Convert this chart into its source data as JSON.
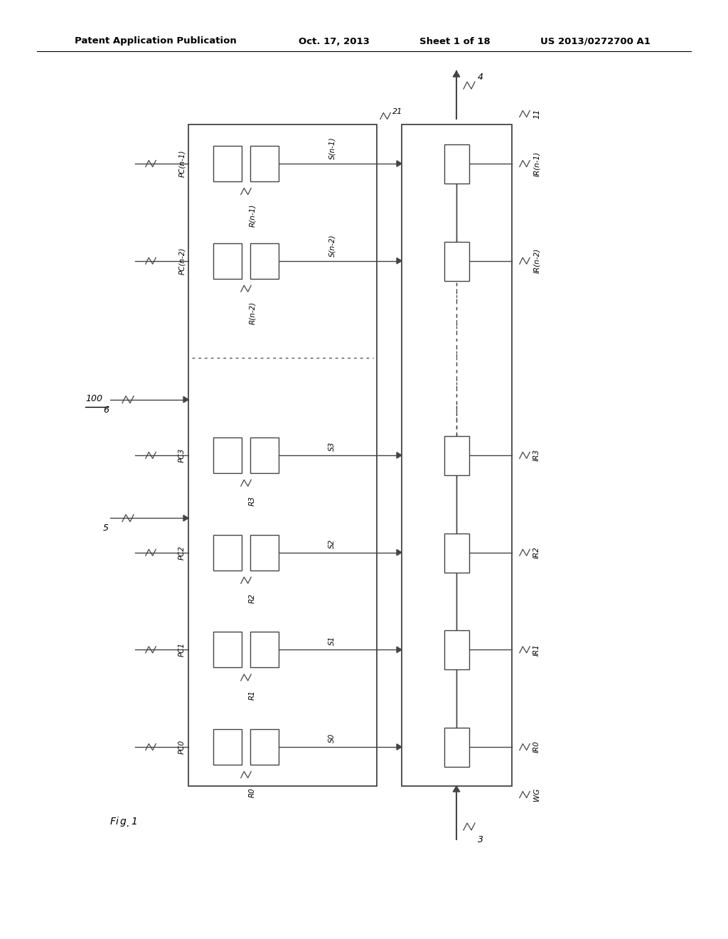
{
  "bg_color": "#ffffff",
  "line_color": "#444444",
  "header_text": "Patent Application Publication",
  "header_date": "Oct. 17, 2013",
  "header_sheet": "Sheet 1 of 18",
  "header_patent": "US 2013/0272700 A1",
  "fig_label": "Fig. 1",
  "n_channels": 7,
  "channel_labels": [
    "PC0",
    "PC1",
    "PC2",
    "PC3",
    "",
    "PC(n-2)",
    "PC(n-1)"
  ],
  "r_labels": [
    "R0",
    "R1",
    "R2",
    "R3",
    "",
    "R(n-2)",
    "R(n-1)"
  ],
  "s_labels": [
    "S0",
    "S1",
    "S2",
    "S3",
    "",
    "S(n-2)",
    "S(n-1)"
  ],
  "ir_labels": [
    "IR0",
    "IR1",
    "IR2",
    "IR3",
    "",
    "IR(n-2)",
    "IR(n-1)"
  ],
  "dot_row": 4,
  "label_100": "100",
  "label_4": "4",
  "label_3": "3",
  "label_5": "5",
  "label_6": "6",
  "label_11": "11",
  "label_21": "21",
  "label_WG": "WG"
}
